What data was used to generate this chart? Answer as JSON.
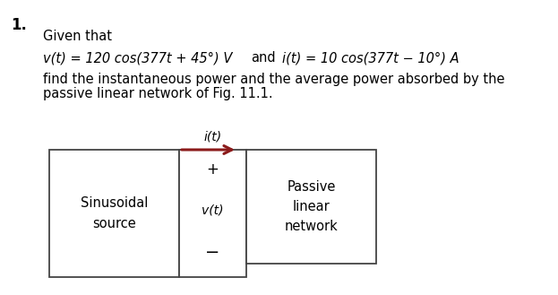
{
  "number": "1.",
  "given_that": "Given that",
  "eq_v": "v(t) = 120 cos(377t + 45°) V",
  "and_text": "and",
  "eq_i": "i(t) = 10 cos(377t − 10°) A",
  "body_line1": "find the instantaneous power and the average power absorbed by the",
  "body_line2": "passive linear network of Fig. 11.1.",
  "fig_label_current": "i(t)",
  "label_sinusoidal": "Sinusoidal\nsource",
  "label_passive": "Passive\nlinear\nnetwork",
  "label_plus": "+",
  "label_minus": "−",
  "label_vt": "v(t)",
  "arrow_color": "#8B1A1A",
  "box_edge_color": "#444444",
  "background_color": "#ffffff",
  "text_color": "#000000",
  "font_size_body": 10.5,
  "font_size_eq": 10.5,
  "font_size_number": 12
}
